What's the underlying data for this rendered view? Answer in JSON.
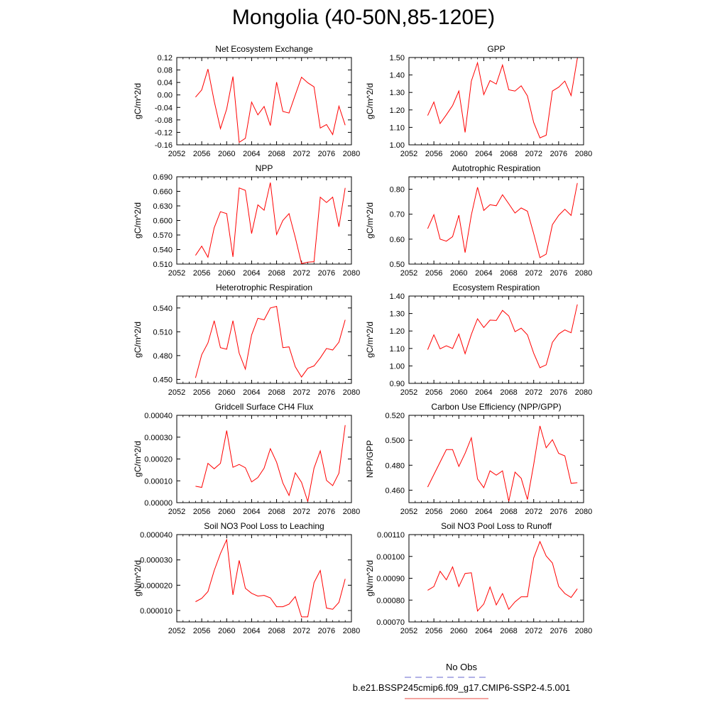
{
  "title": "Mongolia (40-50N,85-120E)",
  "legend": [
    {
      "label": "No Obs",
      "color": "#6666cc",
      "style": "dashed"
    },
    {
      "label": "b.e21.BSSP245cmip6.f09_g17.CMIP6-SSP2-4.5.001",
      "color": "#e8483f",
      "style": "solid"
    }
  ],
  "series_color": "#ff0000",
  "chart_data": [
    {
      "type": "line",
      "title": "Net Ecosystem Exchange",
      "ylabel": "gC/m^2/d",
      "xlim": [
        2052,
        2080
      ],
      "xticks": [
        2052,
        2056,
        2060,
        2064,
        2068,
        2072,
        2076,
        2080
      ],
      "ylim": [
        -0.16,
        0.12
      ],
      "yticks": [
        "-0.16",
        "-0.12",
        "-0.08",
        "-0.04",
        "0.00",
        "0.04",
        "0.08",
        "0.12"
      ],
      "x": [
        2055,
        2056,
        2057,
        2058,
        2059,
        2060,
        2061,
        2062,
        2063,
        2064,
        2065,
        2066,
        2067,
        2068,
        2069,
        2070,
        2071,
        2072,
        2073,
        2074,
        2075,
        2076,
        2077,
        2078,
        2079
      ],
      "y": [
        -0.007,
        0.016,
        0.083,
        -0.02,
        -0.108,
        -0.045,
        0.059,
        -0.152,
        -0.139,
        -0.023,
        -0.064,
        -0.037,
        -0.098,
        0.041,
        -0.053,
        -0.058,
        0.0,
        0.057,
        0.039,
        0.026,
        -0.106,
        -0.095,
        -0.127,
        -0.036,
        -0.097
      ]
    },
    {
      "type": "line",
      "title": "GPP",
      "ylabel": "gC/m^2/d",
      "xlim": [
        2052,
        2080
      ],
      "xticks": [
        2052,
        2056,
        2060,
        2064,
        2068,
        2072,
        2076,
        2080
      ],
      "ylim": [
        1.0,
        1.5
      ],
      "yticks": [
        "1.00",
        "1.10",
        "1.20",
        "1.30",
        "1.40",
        "1.50"
      ],
      "x": [
        2055,
        2056,
        2057,
        2058,
        2059,
        2060,
        2061,
        2062,
        2063,
        2064,
        2065,
        2066,
        2067,
        2068,
        2069,
        2070,
        2071,
        2072,
        2073,
        2074,
        2075,
        2076,
        2077,
        2078,
        2079
      ],
      "y": [
        1.168,
        1.245,
        1.122,
        1.172,
        1.225,
        1.308,
        1.071,
        1.365,
        1.47,
        1.288,
        1.368,
        1.348,
        1.457,
        1.315,
        1.308,
        1.338,
        1.28,
        1.128,
        1.04,
        1.055,
        1.308,
        1.33,
        1.365,
        1.282,
        1.495
      ]
    },
    {
      "type": "line",
      "title": "NPP",
      "ylabel": "gC/m^2/d",
      "xlim": [
        2052,
        2080
      ],
      "xticks": [
        2052,
        2056,
        2060,
        2064,
        2068,
        2072,
        2076,
        2080
      ],
      "ylim": [
        0.51,
        0.69
      ],
      "yticks": [
        "0.510",
        "0.540",
        "0.570",
        "0.600",
        "0.630",
        "0.660",
        "0.690"
      ],
      "x": [
        2055,
        2056,
        2057,
        2058,
        2059,
        2060,
        2061,
        2062,
        2063,
        2064,
        2065,
        2066,
        2067,
        2068,
        2069,
        2070,
        2071,
        2072,
        2073,
        2074,
        2075,
        2076,
        2077,
        2078,
        2079
      ],
      "y": [
        0.528,
        0.547,
        0.524,
        0.585,
        0.618,
        0.614,
        0.525,
        0.667,
        0.662,
        0.573,
        0.632,
        0.621,
        0.678,
        0.571,
        0.6,
        0.614,
        0.565,
        0.511,
        0.514,
        0.515,
        0.648,
        0.637,
        0.648,
        0.587,
        0.667
      ]
    },
    {
      "type": "line",
      "title": "Autotrophic Respiration",
      "ylabel": "gC/m^2/d",
      "xlim": [
        2052,
        2080
      ],
      "xticks": [
        2052,
        2056,
        2060,
        2064,
        2068,
        2072,
        2076,
        2080
      ],
      "ylim": [
        0.5,
        0.85
      ],
      "yticks": [
        "0.50",
        "0.60",
        "0.70",
        "0.80"
      ],
      "x": [
        2055,
        2056,
        2057,
        2058,
        2059,
        2060,
        2061,
        2062,
        2063,
        2064,
        2065,
        2066,
        2067,
        2068,
        2069,
        2070,
        2071,
        2072,
        2073,
        2074,
        2075,
        2076,
        2077,
        2078,
        2079
      ],
      "y": [
        0.642,
        0.698,
        0.6,
        0.592,
        0.61,
        0.696,
        0.546,
        0.697,
        0.808,
        0.715,
        0.738,
        0.734,
        0.778,
        0.742,
        0.705,
        0.725,
        0.712,
        0.622,
        0.526,
        0.54,
        0.658,
        0.695,
        0.72,
        0.695,
        0.825
      ]
    },
    {
      "type": "line",
      "title": "Heterotrophic Respiration",
      "ylabel": "gC/m^2/d",
      "xlim": [
        2052,
        2080
      ],
      "xticks": [
        2052,
        2056,
        2060,
        2064,
        2068,
        2072,
        2076,
        2080
      ],
      "ylim": [
        0.445,
        0.555
      ],
      "yticks": [
        "0.450",
        "0.480",
        "0.510",
        "0.540"
      ],
      "x": [
        2055,
        2056,
        2057,
        2058,
        2059,
        2060,
        2061,
        2062,
        2063,
        2064,
        2065,
        2066,
        2067,
        2068,
        2069,
        2070,
        2071,
        2072,
        2073,
        2074,
        2075,
        2076,
        2077,
        2078,
        2079
      ],
      "y": [
        0.452,
        0.481,
        0.496,
        0.524,
        0.49,
        0.488,
        0.524,
        0.483,
        0.463,
        0.506,
        0.527,
        0.525,
        0.54,
        0.542,
        0.49,
        0.491,
        0.466,
        0.453,
        0.464,
        0.467,
        0.477,
        0.489,
        0.487,
        0.497,
        0.525
      ]
    },
    {
      "type": "line",
      "title": "Ecosystem Respiration",
      "ylabel": "gC/m^2/d",
      "xlim": [
        2052,
        2080
      ],
      "xticks": [
        2052,
        2056,
        2060,
        2064,
        2068,
        2072,
        2076,
        2080
      ],
      "ylim": [
        0.9,
        1.4
      ],
      "yticks": [
        "0.90",
        "1.00",
        "1.10",
        "1.20",
        "1.30",
        "1.40"
      ],
      "x": [
        2055,
        2056,
        2057,
        2058,
        2059,
        2060,
        2061,
        2062,
        2063,
        2064,
        2065,
        2066,
        2067,
        2068,
        2069,
        2070,
        2071,
        2072,
        2073,
        2074,
        2075,
        2076,
        2077,
        2078,
        2079
      ],
      "y": [
        1.093,
        1.178,
        1.098,
        1.115,
        1.1,
        1.182,
        1.07,
        1.18,
        1.27,
        1.22,
        1.262,
        1.26,
        1.318,
        1.286,
        1.196,
        1.216,
        1.178,
        1.073,
        0.99,
        1.006,
        1.135,
        1.183,
        1.206,
        1.19,
        1.352
      ]
    },
    {
      "type": "line",
      "title": "Gridcell Surface CH4 Flux",
      "ylabel": "gC/m^2/d",
      "xlim": [
        2052,
        2080
      ],
      "xticks": [
        2052,
        2056,
        2060,
        2064,
        2068,
        2072,
        2076,
        2080
      ],
      "ylim": [
        0.0,
        0.0004
      ],
      "yticks": [
        "0.00000",
        "0.00010",
        "0.00020",
        "0.00030",
        "0.00040"
      ],
      "x": [
        2055,
        2056,
        2057,
        2058,
        2059,
        2060,
        2061,
        2062,
        2063,
        2064,
        2065,
        2066,
        2067,
        2068,
        2069,
        2070,
        2071,
        2072,
        2073,
        2074,
        2075,
        2076,
        2077,
        2078,
        2079
      ],
      "y": [
        7.5e-05,
        7e-05,
        0.00018,
        0.000155,
        0.00018,
        0.00033,
        0.000162,
        0.000175,
        0.00016,
        9.5e-05,
        0.000115,
        0.000158,
        0.000247,
        0.000185,
        9e-05,
        3.3e-05,
        0.000137,
        9.3e-05,
        5e-06,
        0.000158,
        0.000237,
        0.000102,
        7.8e-05,
        0.000135,
        0.000355
      ]
    },
    {
      "type": "line",
      "title": "Carbon Use Efficiency (NPP/GPP)",
      "ylabel": "NPP/GPP",
      "xlim": [
        2052,
        2080
      ],
      "xticks": [
        2052,
        2056,
        2060,
        2064,
        2068,
        2072,
        2076,
        2080
      ],
      "ylim": [
        0.45,
        0.52
      ],
      "yticks": [
        "0.460",
        "0.480",
        "0.500",
        "0.520"
      ],
      "x": [
        2055,
        2056,
        2057,
        2058,
        2059,
        2060,
        2061,
        2062,
        2063,
        2064,
        2065,
        2066,
        2067,
        2068,
        2069,
        2070,
        2071,
        2072,
        2073,
        2074,
        2075,
        2076,
        2077,
        2078,
        2079
      ],
      "y": [
        0.4625,
        0.4725,
        0.4825,
        0.4925,
        0.4925,
        0.479,
        0.4895,
        0.502,
        0.469,
        0.462,
        0.4755,
        0.472,
        0.4755,
        0.451,
        0.4745,
        0.4695,
        0.4525,
        0.4805,
        0.5115,
        0.494,
        0.5005,
        0.4895,
        0.4875,
        0.4655,
        0.466
      ]
    },
    {
      "type": "line",
      "title": "Soil NO3 Pool Loss to Leaching",
      "ylabel": "gN/m^2/d",
      "xlim": [
        2052,
        2080
      ],
      "xticks": [
        2052,
        2056,
        2060,
        2064,
        2068,
        2072,
        2076,
        2080
      ],
      "ylim": [
        5.5e-06,
        4e-05
      ],
      "yticks": [
        "0.000010",
        "0.000020",
        "0.000030",
        "0.000040"
      ],
      "x": [
        2055,
        2056,
        2057,
        2058,
        2059,
        2060,
        2061,
        2062,
        2063,
        2064,
        2065,
        2066,
        2067,
        2068,
        2069,
        2070,
        2071,
        2072,
        2073,
        2074,
        2075,
        2076,
        2077,
        2078,
        2079
      ],
      "y": [
        1.35e-05,
        1.48e-05,
        1.75e-05,
        2.58e-05,
        3.25e-05,
        3.8e-05,
        1.62e-05,
        2.98e-05,
        1.88e-05,
        1.68e-05,
        1.57e-05,
        1.6e-05,
        1.5e-05,
        1.15e-05,
        1.15e-05,
        1.25e-05,
        1.55e-05,
        7.5e-06,
        7.5e-06,
        2.1e-05,
        2.58e-05,
        1.1e-05,
        1.05e-05,
        1.32e-05,
        2.25e-05
      ]
    },
    {
      "type": "line",
      "title": "Soil NO3 Pool Loss to Runoff",
      "ylabel": "gN/m^2/d",
      "xlim": [
        2052,
        2080
      ],
      "xticks": [
        2052,
        2056,
        2060,
        2064,
        2068,
        2072,
        2076,
        2080
      ],
      "ylim": [
        0.0007,
        0.0011
      ],
      "yticks": [
        "0.00070",
        "0.00080",
        "0.00090",
        "0.00100",
        "0.00110"
      ],
      "x": [
        2055,
        2056,
        2057,
        2058,
        2059,
        2060,
        2061,
        2062,
        2063,
        2064,
        2065,
        2066,
        2067,
        2068,
        2069,
        2070,
        2071,
        2072,
        2073,
        2074,
        2075,
        2076,
        2077,
        2078,
        2079
      ],
      "y": [
        0.000845,
        0.000862,
        0.000932,
        0.000893,
        0.000952,
        0.000862,
        0.000922,
        0.000925,
        0.00075,
        0.000782,
        0.00086,
        0.000778,
        0.00083,
        0.000758,
        0.000792,
        0.000815,
        0.000815,
        0.000993,
        0.001068,
        0.001002,
        0.00097,
        0.000863,
        0.00083,
        0.000812,
        0.000852
      ]
    }
  ]
}
